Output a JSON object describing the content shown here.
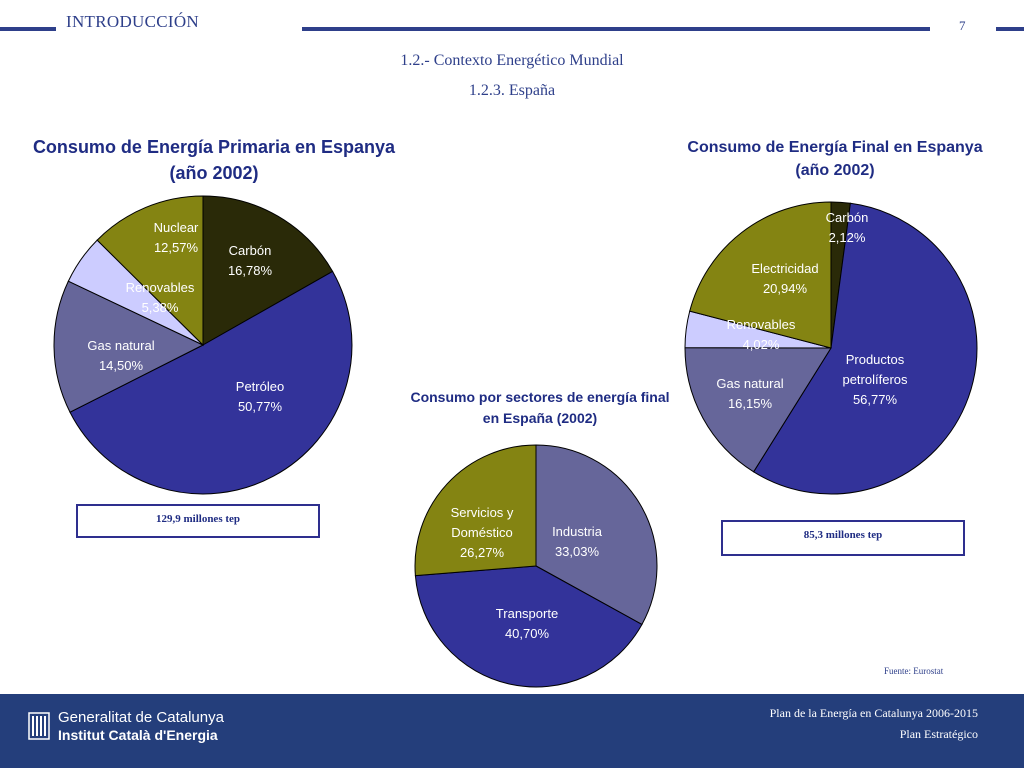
{
  "header": {
    "section": "INTRODUCCIÓN",
    "page": "7"
  },
  "subtitle": {
    "line1": "1.2.- Contexto Energético Mundial",
    "line2": "1.2.3. España"
  },
  "footer": {
    "org_line1": "Generalitat de Catalunya",
    "org_line2": "Institut Català d'Energia",
    "plan_line1": "Plan de la Energía en Catalunya 2006-2015",
    "plan_line2": "Plan Estratégico",
    "colors": {
      "band": "#243e7b",
      "text": "#ffffff"
    }
  },
  "source": "Fuente: Eurostat",
  "chart_data": [
    {
      "type": "pie",
      "title_line1": "Consumo de Energía Primaria en Espanya",
      "title_line2": "(año 2002)",
      "total_label": "129,9 millones tep",
      "slices": [
        {
          "name": "Carbón",
          "value": 16.78,
          "label": "16,78%",
          "color": "#2a2a08"
        },
        {
          "name": "Petróleo",
          "value": 50.77,
          "label": "50,77%",
          "color": "#33339a"
        },
        {
          "name": "Gas natural",
          "value": 14.5,
          "label": "14,50%",
          "color": "#66669a"
        },
        {
          "name": "Renovables",
          "value": 5.38,
          "label": "5,38%",
          "color": "#ccccff"
        },
        {
          "name": "Nuclear",
          "value": 12.57,
          "label": "12,57%",
          "color": "#848412"
        }
      ]
    },
    {
      "type": "pie",
      "title_line1": "Consumo de Energía Final en Espanya",
      "title_line2": "(año 2002)",
      "total_label": "85,3 millones tep",
      "slices": [
        {
          "name": "Carbón",
          "value": 2.12,
          "label": "2,12%",
          "color": "#2a2a08"
        },
        {
          "name": "Productos petrolíferos",
          "value": 56.77,
          "label": "56,77%",
          "color": "#33339a"
        },
        {
          "name": "Gas natural",
          "value": 16.15,
          "label": "16,15%",
          "color": "#66669a"
        },
        {
          "name": "Renovables",
          "value": 4.02,
          "label": "4,02%",
          "color": "#ccccff"
        },
        {
          "name": "Electricidad",
          "value": 20.94,
          "label": "20,94%",
          "color": "#848412"
        }
      ]
    },
    {
      "type": "pie",
      "title_line1": "Consumo por sectores de energía final",
      "title_line2": "en España (2002)",
      "slices": [
        {
          "name": "Industria",
          "value": 33.03,
          "label": "33,03%",
          "color": "#66669a"
        },
        {
          "name": "Transporte",
          "value": 40.7,
          "label": "40,70%",
          "color": "#33339a"
        },
        {
          "name": "Servicios y Doméstico",
          "value": 26.27,
          "label": "26,27%",
          "color": "#848412"
        }
      ]
    }
  ]
}
